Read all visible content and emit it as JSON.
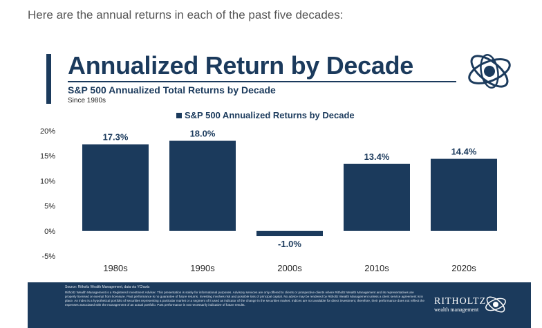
{
  "intro_text": "Here are the annual returns in each of the past five decades:",
  "header": {
    "title": "Annualized Return by Decade",
    "subtitle": "S&P 500 Annualized Total Returns by Decade",
    "since": "Since 1980s"
  },
  "chart_data": {
    "type": "bar",
    "title": "",
    "legend": "S&P 500 Annualized Returns by Decade",
    "legend_position": "top",
    "categories": [
      "1980s",
      "1990s",
      "2000s",
      "2010s",
      "2020s"
    ],
    "values": [
      17.3,
      18.0,
      -1.0,
      13.4,
      14.4
    ],
    "value_labels": [
      "17.3%",
      "18.0%",
      "-1.0%",
      "13.4%",
      "14.4%"
    ],
    "yticks": [
      -5,
      0,
      5,
      10,
      15,
      20
    ],
    "ytick_labels": [
      "-5%",
      "0%",
      "5%",
      "10%",
      "15%",
      "20%"
    ],
    "ylim": [
      -5,
      20
    ],
    "xlabel": "",
    "ylabel": "",
    "grid": false,
    "bar_color": "#1b3a5c"
  },
  "footer": {
    "source": "Source: Ritholtz Wealth Management, data via YCharts",
    "disclaimer": "Ritholtz Wealth Management is a Registered Investment Adviser. This presentation is solely for informational purposes. Advisory services are only offered to clients or prospective clients where Ritholtz Wealth Management and its representatives are properly licensed or exempt from licensure. Past performance is no guarantee of future returns. Investing involves risk and possible loss of principal capital. No advice may be rendered by Ritholtz Wealth Management unless a client service agreement is in place. An index is a hypothetical portfolio of securities representing a particular market or a segment of it used as indicator of the change in the securities market. Indices are not available for direct investment; therefore, their performance does not reflect the expenses associated with the management of an actual portfolio. Past performance is not necessarily indicative of future results.",
    "brand_name": "RITHOLTZ",
    "brand_sub": "wealth management"
  },
  "colors": {
    "navy": "#1b3a5c",
    "axis_text": "#222222"
  }
}
